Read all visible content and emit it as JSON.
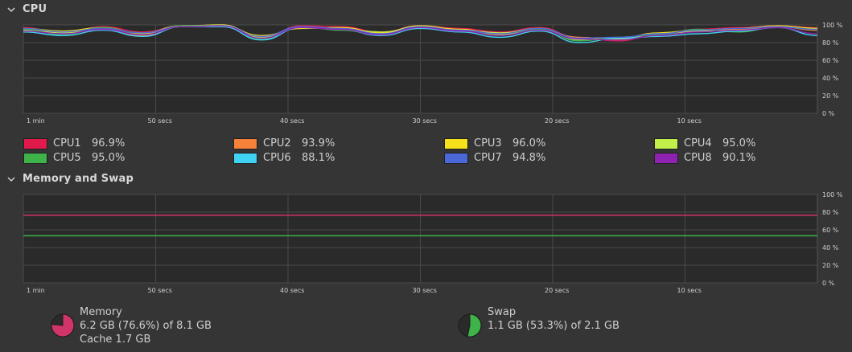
{
  "colors": {
    "background": "#353535",
    "graph_bg": "#2a2a2a",
    "grid": "#4a4a4a",
    "text": "#cfcfcf"
  },
  "cpu": {
    "title": "CPU",
    "x_ticks": [
      "1 min",
      "50 secs",
      "40 secs",
      "30 secs",
      "20 secs",
      "10 secs"
    ],
    "y_ticks": [
      "100 %",
      "80 %",
      "60 %",
      "40 %",
      "20 %",
      "0 %"
    ],
    "cores": [
      {
        "name": "CPU1",
        "value": "96.9%",
        "color": "#e01b4c"
      },
      {
        "name": "CPU2",
        "value": "93.9%",
        "color": "#f6823a"
      },
      {
        "name": "CPU3",
        "value": "96.0%",
        "color": "#f6e11b"
      },
      {
        "name": "CPU4",
        "value": "95.0%",
        "color": "#c2ef4a"
      },
      {
        "name": "CPU5",
        "value": "95.0%",
        "color": "#3db34a"
      },
      {
        "name": "CPU6",
        "value": "88.1%",
        "color": "#3fd2f3"
      },
      {
        "name": "CPU7",
        "value": "94.8%",
        "color": "#4a68d8"
      },
      {
        "name": "CPU8",
        "value": "90.1%",
        "color": "#8f22b0"
      }
    ]
  },
  "memory_swap": {
    "title": "Memory and Swap",
    "x_ticks": [
      "1 min",
      "50 secs",
      "40 secs",
      "30 secs",
      "20 secs",
      "10 secs"
    ],
    "y_ticks": [
      "100 %",
      "80 %",
      "60 %",
      "40 %",
      "20 %",
      "0 %"
    ],
    "memory": {
      "label": "Memory",
      "usage": "6.2 GB (76.6%) of 8.1 GB",
      "cache": "Cache 1.7 GB",
      "fraction": 0.766,
      "color": "#d0346a"
    },
    "swap": {
      "label": "Swap",
      "usage": "1.1 GB (53.3%) of 2.1 GB",
      "fraction": 0.533,
      "color": "#3db34a"
    }
  },
  "chart_data": [
    {
      "type": "line",
      "ylim": [
        0,
        100
      ],
      "x": [
        60,
        57,
        54,
        51,
        48,
        45,
        42,
        39,
        36,
        33,
        30,
        27,
        24,
        21,
        18,
        15,
        12,
        9,
        6,
        3,
        0
      ],
      "series": [
        {
          "name": "CPU1",
          "values": [
            97,
            90,
            98,
            92,
            99,
            100,
            85,
            99,
            98,
            92,
            99,
            96,
            92,
            97,
            85,
            82,
            90,
            95,
            97,
            99,
            96.9
          ]
        },
        {
          "name": "CPU2",
          "values": [
            95,
            92,
            96,
            88,
            98,
            99,
            87,
            98,
            96,
            90,
            98,
            93,
            90,
            95,
            86,
            83,
            88,
            93,
            95,
            98,
            93.9
          ]
        },
        {
          "name": "CPU3",
          "values": [
            96,
            93,
            97,
            90,
            99,
            99,
            88,
            96,
            97,
            91,
            99,
            95,
            89,
            96,
            84,
            85,
            91,
            94,
            96,
            99,
            96.0
          ]
        },
        {
          "name": "CPU4",
          "values": [
            94,
            91,
            95,
            91,
            99,
            100,
            86,
            97,
            95,
            92,
            98,
            94,
            91,
            96,
            83,
            84,
            90,
            93,
            94,
            98,
            95.0
          ]
        },
        {
          "name": "CPU5",
          "values": [
            95,
            89,
            97,
            89,
            99,
            99,
            84,
            98,
            94,
            89,
            97,
            94,
            88,
            95,
            82,
            86,
            89,
            95,
            92,
            98,
            95.0
          ]
        },
        {
          "name": "CPU6",
          "values": [
            92,
            88,
            94,
            87,
            98,
            98,
            83,
            97,
            95,
            88,
            96,
            92,
            86,
            93,
            80,
            85,
            87,
            90,
            93,
            97,
            88.1
          ]
        },
        {
          "name": "CPU7",
          "values": [
            96,
            92,
            96,
            91,
            98,
            99,
            87,
            98,
            96,
            90,
            98,
            94,
            90,
            96,
            85,
            86,
            90,
            94,
            96,
            98,
            94.8
          ]
        },
        {
          "name": "CPU8",
          "values": [
            93,
            90,
            95,
            89,
            98,
            99,
            85,
            97,
            95,
            89,
            97,
            93,
            88,
            94,
            84,
            83,
            88,
            92,
            94,
            97,
            90.1
          ]
        }
      ]
    },
    {
      "type": "line",
      "ylim": [
        0,
        100
      ],
      "x": [
        60,
        0
      ],
      "series": [
        {
          "name": "Memory",
          "values": [
            76.6,
            76.6
          ]
        },
        {
          "name": "Swap",
          "values": [
            53.3,
            53.3
          ]
        }
      ]
    }
  ]
}
